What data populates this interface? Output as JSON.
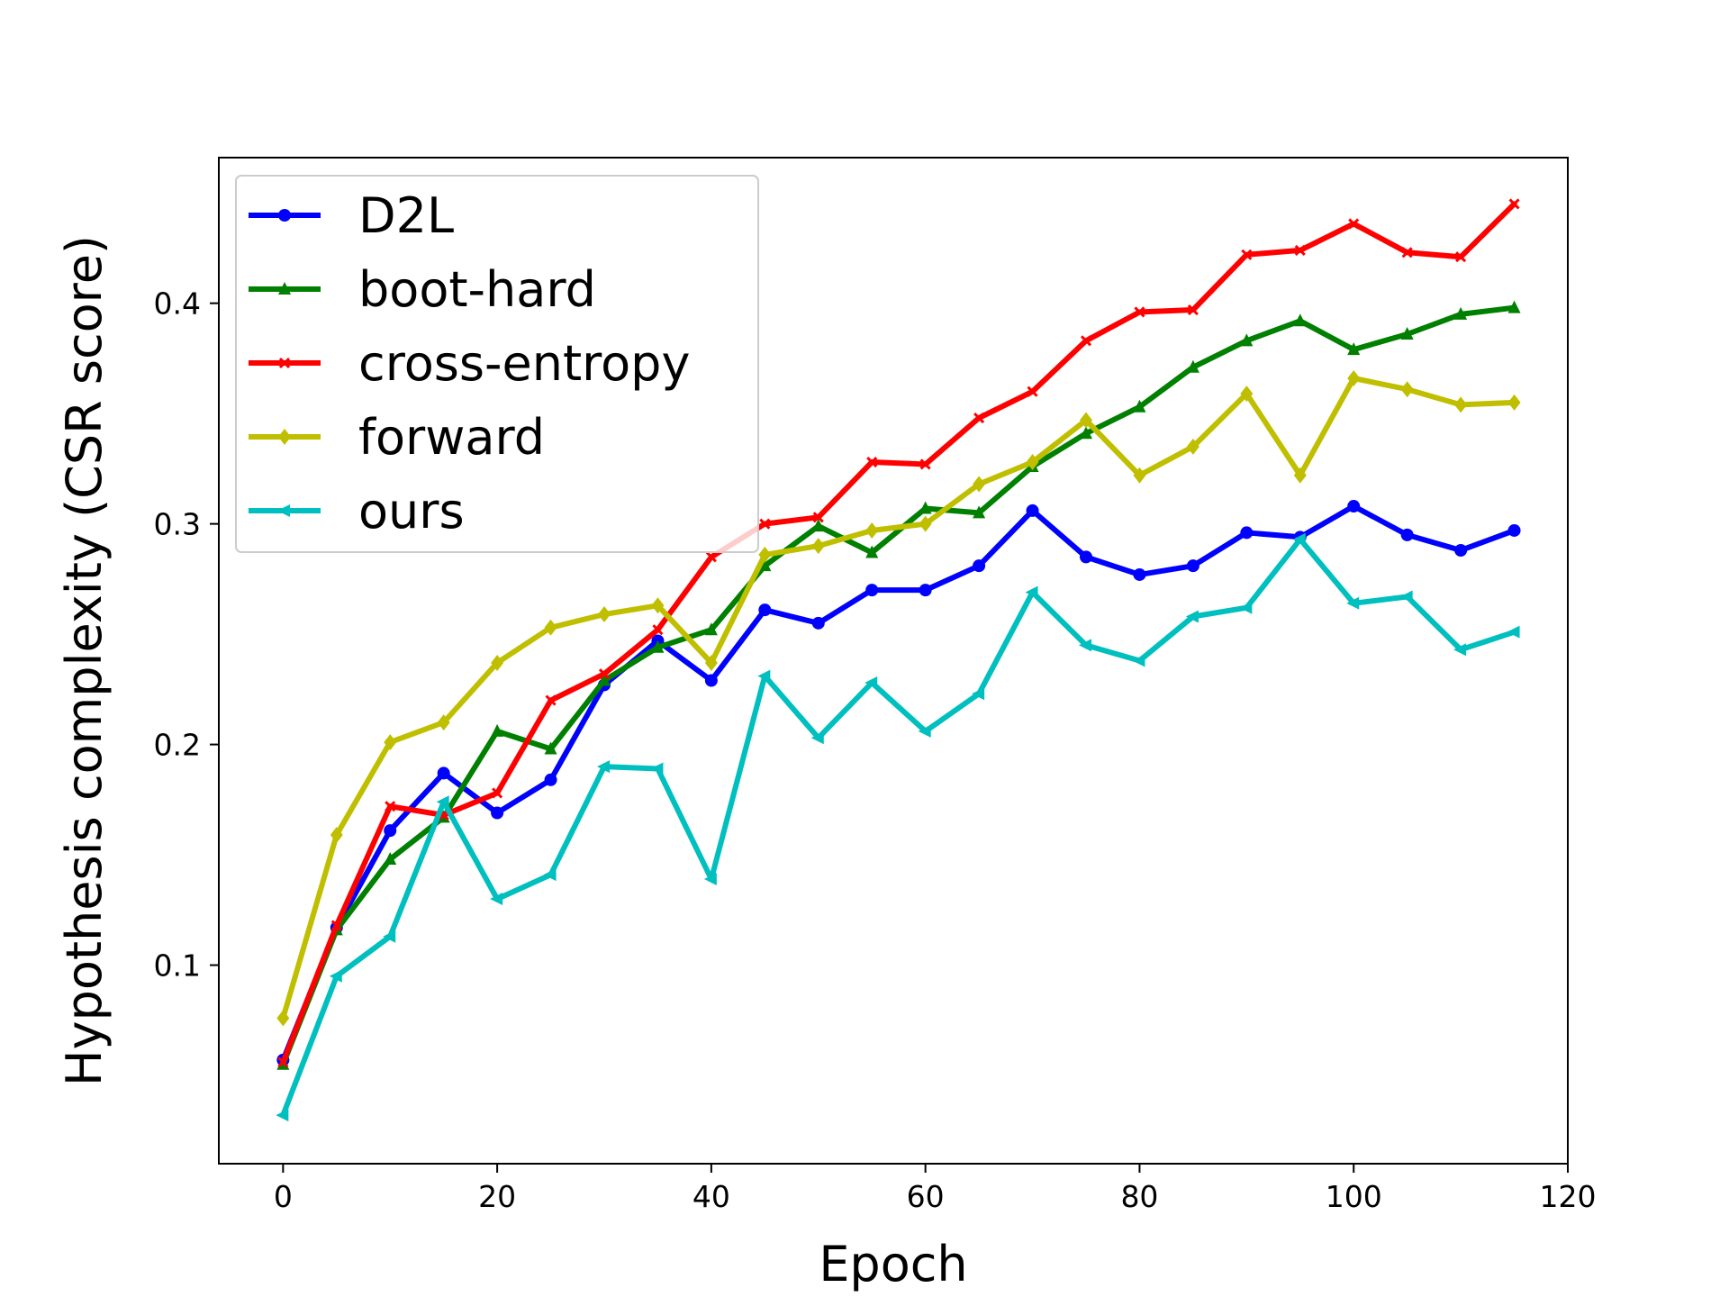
{
  "chart_data": {
    "type": "line",
    "title": "",
    "xlabel": "Epoch",
    "ylabel": "Hypothesis complexity (CSR score)",
    "xlim": [
      -6,
      120
    ],
    "ylim": [
      0.01,
      0.466
    ],
    "xticks": [
      0,
      20,
      40,
      60,
      80,
      100,
      120
    ],
    "yticks": [
      0.1,
      0.2,
      0.3,
      0.4
    ],
    "grid": false,
    "legend_position": "upper-left",
    "x": [
      0,
      5,
      10,
      15,
      20,
      25,
      30,
      35,
      40,
      45,
      50,
      55,
      60,
      65,
      70,
      75,
      80,
      85,
      90,
      95,
      100,
      105,
      110,
      115
    ],
    "series": [
      {
        "name": "D2L",
        "color": "#0000ff",
        "marker": "circle",
        "values": [
          0.057,
          0.117,
          0.161,
          0.187,
          0.169,
          0.184,
          0.227,
          0.247,
          0.229,
          0.261,
          0.255,
          0.27,
          0.27,
          0.281,
          0.306,
          0.285,
          0.277,
          0.281,
          0.296,
          0.294,
          0.308,
          0.295,
          0.288,
          0.297
        ]
      },
      {
        "name": "boot-hard",
        "color": "#008000",
        "marker": "triangle-up",
        "values": [
          0.055,
          0.116,
          0.148,
          0.167,
          0.206,
          0.198,
          0.229,
          0.244,
          0.252,
          0.281,
          0.299,
          0.287,
          0.307,
          0.305,
          0.326,
          0.341,
          0.353,
          0.371,
          0.383,
          0.392,
          0.379,
          0.386,
          0.395,
          0.398
        ]
      },
      {
        "name": "cross-entropy",
        "color": "#ff0000",
        "marker": "x",
        "values": [
          0.056,
          0.118,
          0.172,
          0.168,
          0.178,
          0.22,
          0.232,
          0.252,
          0.285,
          0.3,
          0.303,
          0.328,
          0.327,
          0.348,
          0.36,
          0.383,
          0.396,
          0.397,
          0.422,
          0.424,
          0.436,
          0.423,
          0.421,
          0.445
        ]
      },
      {
        "name": "forward",
        "color": "#bfbf00",
        "marker": "diamond",
        "values": [
          0.076,
          0.159,
          0.201,
          0.21,
          0.237,
          0.253,
          0.259,
          0.263,
          0.237,
          0.286,
          0.29,
          0.297,
          0.3,
          0.318,
          0.328,
          0.347,
          0.322,
          0.335,
          0.359,
          0.322,
          0.366,
          0.361,
          0.354,
          0.355
        ]
      },
      {
        "name": "ours",
        "color": "#00bfbf",
        "marker": "triangle-left",
        "values": [
          0.032,
          0.095,
          0.113,
          0.174,
          0.13,
          0.141,
          0.19,
          0.189,
          0.139,
          0.231,
          0.203,
          0.228,
          0.206,
          0.223,
          0.269,
          0.245,
          0.238,
          0.258,
          0.262,
          0.293,
          0.264,
          0.267,
          0.243,
          0.251
        ]
      }
    ]
  }
}
